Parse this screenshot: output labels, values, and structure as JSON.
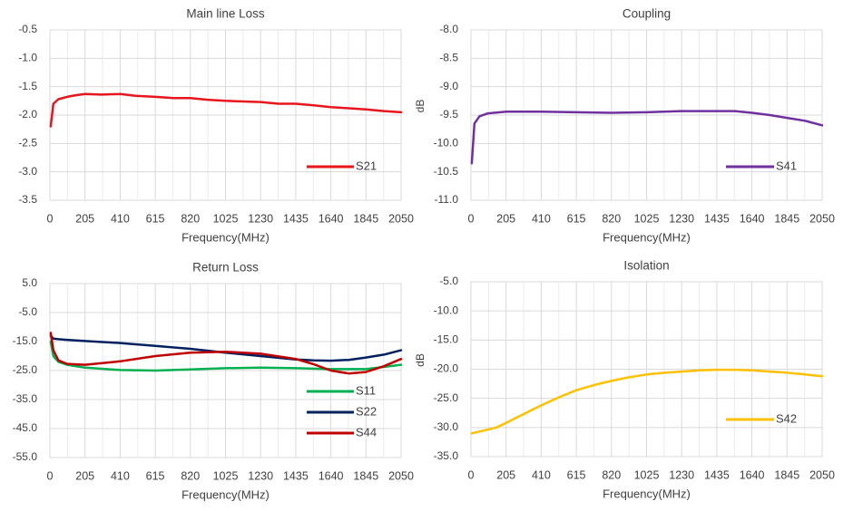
{
  "chart_data": [
    {
      "type": "line",
      "title": "Main line Loss",
      "xlabel": "Frequency(MHz)",
      "ylabel": "",
      "xlim": [
        0,
        2050
      ],
      "ylim": [
        -3.5,
        -0.5
      ],
      "yticks": [
        "-0.5",
        "-1.0",
        "-1.5",
        "-2.0",
        "-2.5",
        "-3.0",
        "-3.5"
      ],
      "xticks": [
        "0",
        "205",
        "410",
        "615",
        "820",
        "1025",
        "1230",
        "1435",
        "1640",
        "1845",
        "2050"
      ],
      "grid": true,
      "legend": "bottom-right",
      "series": [
        {
          "name": "S21",
          "color": "#e8161c",
          "x": [
            5,
            20,
            50,
            100,
            150,
            205,
            300,
            410,
            500,
            615,
            720,
            820,
            920,
            1025,
            1130,
            1230,
            1335,
            1435,
            1540,
            1640,
            1745,
            1845,
            1950,
            2050
          ],
          "y": [
            -2.2,
            -1.8,
            -1.72,
            -1.68,
            -1.65,
            -1.63,
            -1.64,
            -1.63,
            -1.66,
            -1.68,
            -1.7,
            -1.7,
            -1.73,
            -1.75,
            -1.76,
            -1.77,
            -1.8,
            -1.8,
            -1.83,
            -1.86,
            -1.88,
            -1.9,
            -1.93,
            -1.95
          ]
        }
      ]
    },
    {
      "type": "line",
      "title": "Coupling",
      "xlabel": "Frequency(MHz)",
      "ylabel": "dB",
      "xlim": [
        0,
        2050
      ],
      "ylim": [
        -11.0,
        -8.0
      ],
      "yticks": [
        "-8.0",
        "-8.5",
        "-9.0",
        "-9.5",
        "-10.0",
        "-10.5",
        "-11.0"
      ],
      "xticks": [
        "0",
        "205",
        "410",
        "615",
        "820",
        "1025",
        "1230",
        "1435",
        "1640",
        "1845",
        "2050"
      ],
      "grid": true,
      "legend": "bottom-right",
      "series": [
        {
          "name": "S41",
          "color": "#7030a0",
          "x": [
            5,
            20,
            50,
            100,
            205,
            410,
            615,
            820,
            1025,
            1230,
            1435,
            1540,
            1640,
            1745,
            1845,
            1950,
            2050
          ],
          "y": [
            -10.35,
            -9.65,
            -9.52,
            -9.47,
            -9.44,
            -9.44,
            -9.45,
            -9.46,
            -9.45,
            -9.43,
            -9.43,
            -9.43,
            -9.46,
            -9.5,
            -9.55,
            -9.6,
            -9.68
          ]
        }
      ]
    },
    {
      "type": "line",
      "title": "Return Loss",
      "xlabel": "Frequency(MHz)",
      "ylabel": "",
      "xlim": [
        0,
        2050
      ],
      "ylim": [
        -55.0,
        5.0
      ],
      "yticks": [
        "5.0",
        "-5.0",
        "-15.0",
        "-25.0",
        "-35.0",
        "-45.0",
        "-55.0"
      ],
      "xticks": [
        "0",
        "205",
        "410",
        "615",
        "820",
        "1025",
        "1230",
        "1435",
        "1640",
        "1845",
        "2050"
      ],
      "grid": true,
      "legend": "bottom-right",
      "series": [
        {
          "name": "S11",
          "color": "#00b050",
          "x": [
            5,
            20,
            50,
            100,
            205,
            410,
            615,
            820,
            1025,
            1230,
            1435,
            1640,
            1845,
            2050
          ],
          "y": [
            -15,
            -20,
            -22,
            -23,
            -24,
            -24.8,
            -25,
            -24.6,
            -24.2,
            -24,
            -24.2,
            -24.5,
            -24.5,
            -23
          ]
        },
        {
          "name": "S22",
          "color": "#002060",
          "x": [
            5,
            20,
            50,
            100,
            205,
            410,
            615,
            820,
            1025,
            1230,
            1435,
            1540,
            1640,
            1745,
            1845,
            1950,
            2050
          ],
          "y": [
            -13,
            -14,
            -14.2,
            -14.4,
            -14.8,
            -15.5,
            -16.5,
            -17.5,
            -18.8,
            -20,
            -21.2,
            -21.5,
            -21.6,
            -21.3,
            -20.5,
            -19.5,
            -18
          ]
        },
        {
          "name": "S44",
          "color": "#c00000",
          "x": [
            5,
            20,
            50,
            100,
            205,
            410,
            615,
            820,
            1025,
            1230,
            1435,
            1540,
            1640,
            1745,
            1845,
            1950,
            2050
          ],
          "y": [
            -12,
            -18,
            -21.5,
            -22.7,
            -23,
            -21.8,
            -20,
            -18.8,
            -18.5,
            -19.2,
            -21,
            -22.8,
            -25,
            -26,
            -25.5,
            -23.5,
            -21
          ]
        }
      ]
    },
    {
      "type": "line",
      "title": "Isolation",
      "xlabel": "Frequency(MHz)",
      "ylabel": "dB",
      "xlim": [
        0,
        2050
      ],
      "ylim": [
        -35.0,
        -5.0
      ],
      "yticks": [
        "-5.0",
        "-10.0",
        "-15.0",
        "-20.0",
        "-25.0",
        "-30.0",
        "-35.0"
      ],
      "xticks": [
        "0",
        "205",
        "410",
        "615",
        "820",
        "1025",
        "1230",
        "1435",
        "1640",
        "1845",
        "2050"
      ],
      "grid": true,
      "legend": "bottom-right",
      "series": [
        {
          "name": "S42",
          "color": "#ffc000",
          "x": [
            5,
            50,
            150,
            205,
            300,
            410,
            515,
            615,
            720,
            820,
            920,
            1025,
            1130,
            1230,
            1335,
            1435,
            1540,
            1640,
            1745,
            1845,
            1950,
            2050
          ],
          "y": [
            -31,
            -30.7,
            -30,
            -29.2,
            -27.8,
            -26.2,
            -24.8,
            -23.6,
            -22.7,
            -22,
            -21.4,
            -20.9,
            -20.6,
            -20.4,
            -20.2,
            -20.1,
            -20.1,
            -20.2,
            -20.4,
            -20.6,
            -20.9,
            -21.2
          ]
        }
      ]
    }
  ]
}
